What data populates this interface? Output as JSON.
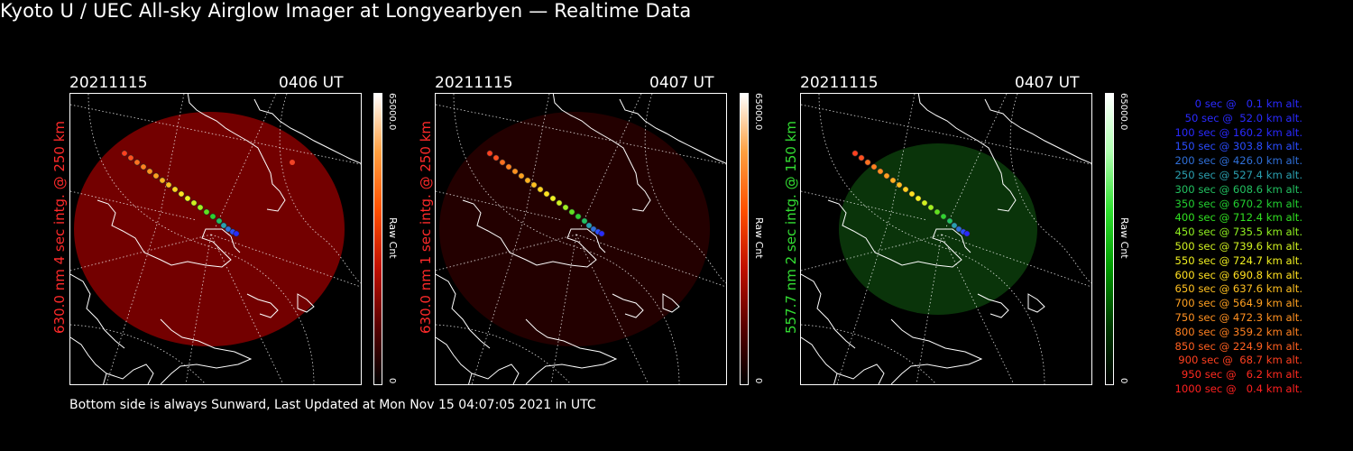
{
  "title": "Kyoto U / UEC All-sky Airglow Imager at Longyearbyen — Realtime Data",
  "footer": "Bottom side is always Sunward, Last Updated at Mon Nov 15 04:07:05 2021 in UTC",
  "panels": [
    {
      "date": "20211115",
      "time": "0406 UT",
      "vlabel": "630.0 nm  4 sec intg. @ 250 km",
      "label_color": "#ff2a2a",
      "cbar_max": "65000.0",
      "cbar_min": "0",
      "cbar_title": "Raw Cnt",
      "glow_color": "#a00000",
      "glow_opacity": 0.72,
      "cbar_gradient": "linear-gradient(to top,#000000,#5a0000,#c01000,#ff5000,#ffa040,#ffffff)"
    },
    {
      "date": "20211115",
      "time": "0407 UT",
      "vlabel": "630.0 nm  1 sec intg. @ 250 km",
      "label_color": "#ff2a2a",
      "cbar_max": "65000.0",
      "cbar_min": "0",
      "cbar_title": "Raw Cnt",
      "glow_color": "#3a0000",
      "glow_opacity": 0.6,
      "cbar_gradient": "linear-gradient(to top,#000000,#5a0000,#c01000,#ff5000,#ffa040,#ffffff)"
    },
    {
      "date": "20211115",
      "time": "0407 UT",
      "vlabel": "557.7 nm  2 sec intg. @ 150 km",
      "label_color": "#33dd33",
      "cbar_max": "65000.0",
      "cbar_min": "0",
      "cbar_title": "Raw Cnt",
      "glow_color": "#0e4a0e",
      "glow_opacity": 0.7,
      "cbar_gradient": "linear-gradient(to top,#000000,#003a00,#009a00,#30e030,#b0ffb0,#ffffff)"
    }
  ],
  "legend": [
    {
      "text": "0 sec @   0.1 km alt.",
      "color": "#2a2aff"
    },
    {
      "text": "50 sec @  52.0 km alt.",
      "color": "#2a2aff"
    },
    {
      "text": "100 sec @ 160.2 km alt.",
      "color": "#2a2aff"
    },
    {
      "text": "150 sec @ 303.8 km alt.",
      "color": "#2a4cff"
    },
    {
      "text": "200 sec @ 426.0 km alt.",
      "color": "#2f6fd8"
    },
    {
      "text": "250 sec @ 527.4 km alt.",
      "color": "#2aa0b0"
    },
    {
      "text": "300 sec @ 608.6 km alt.",
      "color": "#22c060"
    },
    {
      "text": "350 sec @ 670.2 km alt.",
      "color": "#22d030"
    },
    {
      "text": "400 sec @ 712.4 km alt.",
      "color": "#30e020"
    },
    {
      "text": "450 sec @ 735.5 km alt.",
      "color": "#90f020"
    },
    {
      "text": "500 sec @ 739.6 km alt.",
      "color": "#d0f020"
    },
    {
      "text": "550 sec @ 724.7 km alt.",
      "color": "#f0f020"
    },
    {
      "text": "600 sec @ 690.8 km alt.",
      "color": "#ffe020"
    },
    {
      "text": "650 sec @ 637.6 km alt.",
      "color": "#ffc020"
    },
    {
      "text": "700 sec @ 564.9 km alt.",
      "color": "#ffa020"
    },
    {
      "text": "750 sec @ 472.3 km alt.",
      "color": "#ff9020"
    },
    {
      "text": "800 sec @ 359.2 km alt.",
      "color": "#ff8020"
    },
    {
      "text": "850 sec @ 224.9 km alt.",
      "color": "#ff6020"
    },
    {
      "text": "900 sec @  68.7 km alt.",
      "color": "#ff4020"
    },
    {
      "text": "950 sec @   6.2 km alt.",
      "color": "#ff2a20"
    },
    {
      "text": "1000 sec @   0.4 km alt.",
      "color": "#ff2020"
    }
  ]
}
